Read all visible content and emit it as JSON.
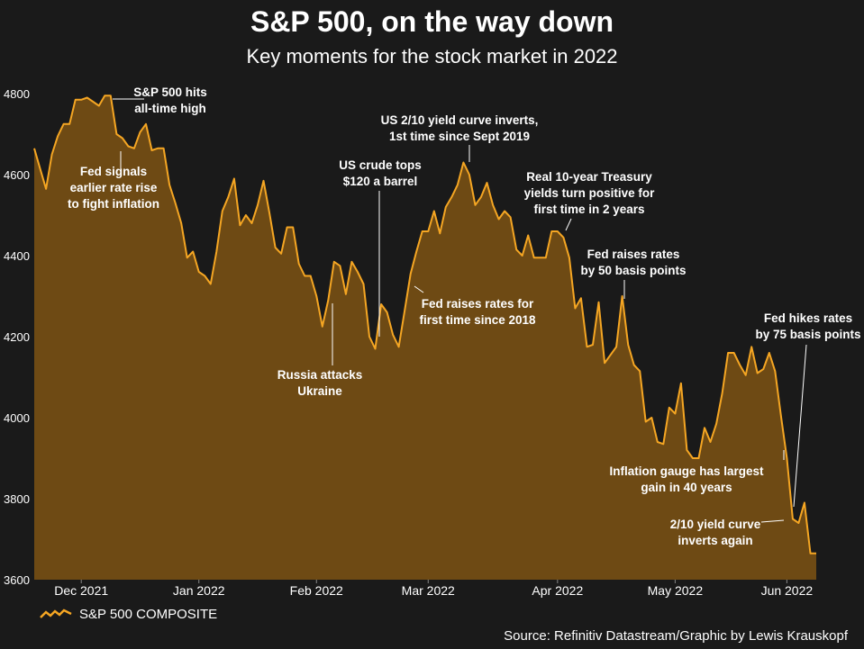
{
  "chart_data": {
    "type": "area",
    "title": "S&P 500, on the way down",
    "subtitle": "Key moments for the stock market in 2022",
    "series_name": "S&P 500 COMPOSITE",
    "source": "Source: Refinitiv Datastream/Graphic by Lewis Krauskopf",
    "ylim": [
      3600,
      4820
    ],
    "y_ticks": [
      3600,
      3800,
      4000,
      4200,
      4400,
      4600,
      4800
    ],
    "x_ticks": [
      {
        "label": "Dec 2021",
        "index": 8
      },
      {
        "label": "Jan 2022",
        "index": 28
      },
      {
        "label": "Feb 2022",
        "index": 48
      },
      {
        "label": "Mar 2022",
        "index": 67
      },
      {
        "label": "Apr 2022",
        "index": 89
      },
      {
        "label": "May 2022",
        "index": 109
      },
      {
        "label": "Jun 2022",
        "index": 128
      }
    ],
    "values": [
      4665,
      4615,
      4565,
      4650,
      4695,
      4725,
      4725,
      4785,
      4785,
      4790,
      4780,
      4770,
      4795,
      4795,
      4700,
      4690,
      4670,
      4665,
      4705,
      4725,
      4660,
      4665,
      4665,
      4575,
      4530,
      4480,
      4395,
      4410,
      4360,
      4350,
      4330,
      4410,
      4510,
      4545,
      4590,
      4475,
      4500,
      4480,
      4525,
      4585,
      4505,
      4420,
      4405,
      4470,
      4470,
      4380,
      4350,
      4350,
      4300,
      4225,
      4290,
      4385,
      4375,
      4305,
      4385,
      4360,
      4330,
      4200,
      4170,
      4280,
      4260,
      4205,
      4175,
      4265,
      4355,
      4410,
      4460,
      4460,
      4510,
      4455,
      4520,
      4545,
      4575,
      4630,
      4600,
      4525,
      4545,
      4580,
      4525,
      4490,
      4510,
      4495,
      4415,
      4400,
      4450,
      4395,
      4395,
      4395,
      4460,
      4460,
      4445,
      4395,
      4270,
      4295,
      4175,
      4180,
      4285,
      4135,
      4155,
      4175,
      4300,
      4180,
      4130,
      4115,
      3990,
      4000,
      3940,
      3935,
      4025,
      4010,
      4085,
      3920,
      3900,
      3900,
      3975,
      3940,
      3985,
      4060,
      4160,
      4160,
      4130,
      4105,
      4175,
      4110,
      4120,
      4160,
      4115,
      4005,
      3900,
      3750,
      3740,
      3790,
      3665,
      3665
    ],
    "annotations": [
      {
        "text": "S&P 500 hits all-time high",
        "lines": [
          "S&P 500 hits",
          "all-time high"
        ],
        "index": 13
      },
      {
        "text": "Fed signals earlier rate rise to fight inflation",
        "lines": [
          "Fed signals",
          "earlier rate rise",
          "to fight inflation"
        ],
        "index": 14
      },
      {
        "text": "Russia attacks Ukraine",
        "lines": [
          "Russia attacks",
          "Ukraine"
        ],
        "index": 51
      },
      {
        "text": "US crude tops $120 a barrel",
        "lines": [
          "US crude tops",
          "$120 a barrel"
        ],
        "index": 58
      },
      {
        "text": "US 2/10 yield curve inverts, 1st time since Sept 2019",
        "lines": [
          "US 2/10 yield curve inverts,",
          "1st time since Sept 2019"
        ],
        "index": 73
      },
      {
        "text": "Fed raises rates for first time since 2018",
        "lines": [
          "Fed raises rates for",
          "first time since 2018"
        ],
        "index": 64
      },
      {
        "text": "Real 10-year Treasury yields turn positive for first time in 2 years",
        "lines": [
          "Real 10-year Treasury",
          "yields turn positive for",
          "first time in 2 years"
        ],
        "index": 89
      },
      {
        "text": "Fed raises rates by 50 basis points",
        "lines": [
          "Fed raises rates",
          "by 50 basis points"
        ],
        "index": 100
      },
      {
        "text": "Fed hikes rates by 75 basis points",
        "lines": [
          "Fed hikes rates",
          "by 75 basis points"
        ],
        "index": 130
      },
      {
        "text": "Inflation gauge has largest gain in 40 years",
        "lines": [
          "Inflation gauge has largest",
          "gain in 40 years"
        ],
        "index": 125
      },
      {
        "text": "2/10 yield curve inverts again",
        "lines": [
          "2/10 yield curve",
          "inverts again"
        ],
        "index": 128
      }
    ],
    "colors": {
      "line": "#f5a623",
      "area": "#6e4a14",
      "background": "#1a1a1a",
      "text": "#ffffff",
      "leader": "#ffffff"
    }
  }
}
